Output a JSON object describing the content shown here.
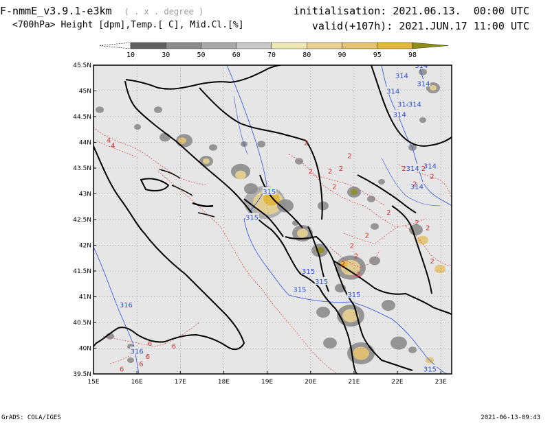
{
  "header": {
    "model": "F-nmmE_v3.9.1-e3km",
    "units": "( . x . degree )",
    "fields": "<700hPa> Height [dpm],Temp.[ C], Mid.Cl.[%]",
    "init_label": "initialisation:",
    "init_value": "2021.06.13.  00:00 UTC",
    "valid_label": "valid(+107h):",
    "valid_value": "2021.JUN.17 11:00 UTC"
  },
  "colorbar": {
    "ticks": [
      "10",
      "30",
      "50",
      "60",
      "70",
      "80",
      "90",
      "95",
      "98"
    ],
    "colors": [
      "#ffffff",
      "#5f5f5f",
      "#8c8c8c",
      "#a9a9a9",
      "#c8c8c8",
      "#ede8b0",
      "#e8d090",
      "#e4c270",
      "#e2b63a",
      "#8f8f17"
    ]
  },
  "map": {
    "lat_labels": [
      "45.5N",
      "45N",
      "44.5N",
      "44N",
      "43.5N",
      "43N",
      "42.5N",
      "42N",
      "41.5N",
      "41N",
      "40.5N",
      "40N",
      "39.5N"
    ],
    "lon_labels": [
      "15E",
      "16E",
      "17E",
      "18E",
      "19E",
      "20E",
      "21E",
      "22E",
      "23E"
    ],
    "height_labels": [
      {
        "text": "314",
        "lon": 22.1,
        "lat": 45.3
      },
      {
        "text": "314",
        "lon": 22.55,
        "lat": 45.5
      },
      {
        "text": "314",
        "lon": 22.6,
        "lat": 45.15
      },
      {
        "text": "314",
        "lon": 21.9,
        "lat": 45.0
      },
      {
        "text": "314",
        "lon": 22.15,
        "lat": 44.75
      },
      {
        "text": "314",
        "lon": 22.4,
        "lat": 44.75
      },
      {
        "text": "314",
        "lon": 22.05,
        "lat": 44.55
      },
      {
        "text": "314",
        "lon": 22.35,
        "lat": 43.5
      },
      {
        "text": "314",
        "lon": 22.75,
        "lat": 43.55
      },
      {
        "text": "314",
        "lon": 22.45,
        "lat": 43.15
      },
      {
        "text": "315",
        "lon": 19.05,
        "lat": 43.05
      },
      {
        "text": "315",
        "lon": 18.65,
        "lat": 42.55
      },
      {
        "text": "315",
        "lon": 19.95,
        "lat": 41.5
      },
      {
        "text": "315",
        "lon": 20.25,
        "lat": 41.3
      },
      {
        "text": "315",
        "lon": 19.75,
        "lat": 41.15
      },
      {
        "text": "315",
        "lon": 21.0,
        "lat": 41.05
      },
      {
        "text": "316",
        "lon": 15.75,
        "lat": 40.85
      },
      {
        "text": "316",
        "lon": 16.0,
        "lat": 39.95
      },
      {
        "text": "315",
        "lon": 22.75,
        "lat": 39.6
      }
    ],
    "temp_labels": [
      {
        "text": "2",
        "lon": 19.9,
        "lat": 44.0
      },
      {
        "text": "2",
        "lon": 20.9,
        "lat": 43.75
      },
      {
        "text": "2",
        "lon": 20.0,
        "lat": 43.45
      },
      {
        "text": "2",
        "lon": 20.45,
        "lat": 43.45
      },
      {
        "text": "2",
        "lon": 20.7,
        "lat": 43.5
      },
      {
        "text": "2",
        "lon": 20.55,
        "lat": 43.15
      },
      {
        "text": "2",
        "lon": 22.15,
        "lat": 43.5
      },
      {
        "text": "2",
        "lon": 22.6,
        "lat": 43.5
      },
      {
        "text": "2",
        "lon": 22.8,
        "lat": 43.35
      },
      {
        "text": "2",
        "lon": 22.4,
        "lat": 43.2
      },
      {
        "text": "2",
        "lon": 21.8,
        "lat": 42.65
      },
      {
        "text": "2",
        "lon": 22.45,
        "lat": 42.45
      },
      {
        "text": "2",
        "lon": 22.7,
        "lat": 42.35
      },
      {
        "text": "2",
        "lon": 21.3,
        "lat": 42.2
      },
      {
        "text": "2",
        "lon": 20.95,
        "lat": 42.0
      },
      {
        "text": "2",
        "lon": 21.05,
        "lat": 41.8
      },
      {
        "text": "2",
        "lon": 20.75,
        "lat": 41.65
      },
      {
        "text": "2",
        "lon": 21.1,
        "lat": 41.45
      },
      {
        "text": "2",
        "lon": 22.8,
        "lat": 41.7
      },
      {
        "text": "4",
        "lon": 15.35,
        "lat": 44.05
      },
      {
        "text": "4",
        "lon": 15.45,
        "lat": 43.95
      },
      {
        "text": "6",
        "lon": 16.3,
        "lat": 40.1
      },
      {
        "text": "6",
        "lon": 16.85,
        "lat": 40.05
      },
      {
        "text": "6",
        "lon": 16.25,
        "lat": 39.85
      },
      {
        "text": "6",
        "lon": 15.65,
        "lat": 39.6
      },
      {
        "text": "6",
        "lon": 16.1,
        "lat": 39.7
      }
    ]
  },
  "footer": {
    "left": "GrADS: COLA/IGES",
    "right": "2021-06-13-09:43"
  }
}
